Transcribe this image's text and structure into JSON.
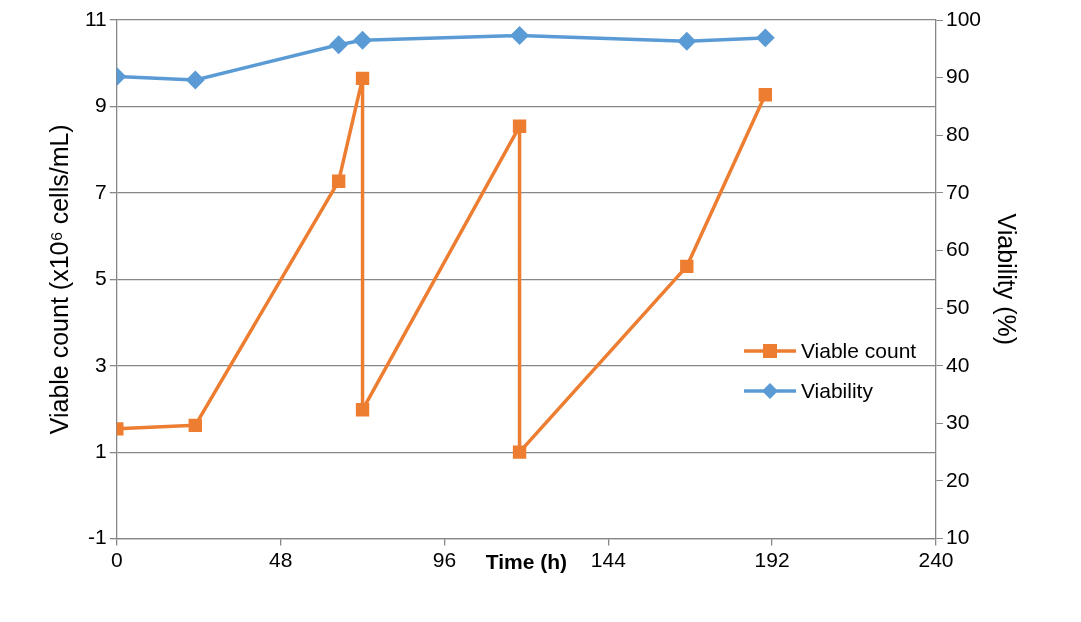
{
  "chart_data": {
    "type": "line",
    "xlabel": "Time (h)",
    "ylabel": "Viable count (x10⁶ cells/mL)",
    "y2label": "Viability (%)",
    "xlim": [
      0,
      240
    ],
    "xticks": [
      0,
      48,
      96,
      144,
      192,
      240
    ],
    "ylim": [
      -1,
      11
    ],
    "yticks": [
      -1,
      1,
      3,
      5,
      7,
      9,
      11
    ],
    "y2lim": [
      10,
      100
    ],
    "y2ticks": [
      10,
      20,
      30,
      40,
      50,
      60,
      70,
      80,
      90,
      100
    ],
    "grid": "y",
    "legend": "right",
    "series": [
      {
        "name": "Viable count",
        "color": "#ed7d31",
        "marker": "square",
        "x": [
          0,
          23,
          65,
          72,
          72,
          118,
          118,
          167,
          190
        ],
        "values": [
          1.54,
          1.62,
          7.27,
          9.65,
          1.98,
          8.54,
          1.0,
          5.3,
          9.27
        ]
      },
      {
        "name": "Viability",
        "color": "#5b9bd5",
        "marker": "diamond",
        "axis": "y2",
        "x": [
          0,
          23,
          65,
          72,
          118,
          167,
          190
        ],
        "values": [
          90.2,
          89.6,
          95.7,
          96.5,
          97.3,
          96.3,
          96.9
        ]
      }
    ]
  }
}
